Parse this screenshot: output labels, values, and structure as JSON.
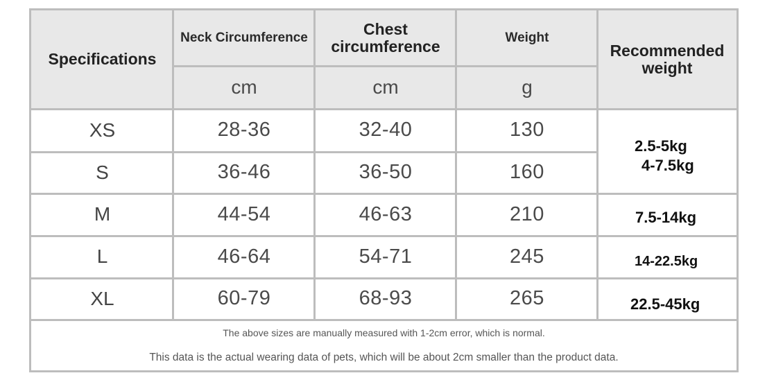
{
  "table": {
    "headers": {
      "specifications": "Specifications",
      "neck": "Neck Circumference",
      "chest_line1": "Chest",
      "chest_line2": "circumference",
      "weight": "Weight",
      "recommended_line1": "Recommended",
      "recommended_line2": "weight"
    },
    "units": {
      "neck": "cm",
      "chest": "cm",
      "weight": "g"
    },
    "rows": [
      {
        "size": "XS",
        "neck": "28-36",
        "chest": "32-40",
        "weight": "130"
      },
      {
        "size": "S",
        "neck": "36-46",
        "chest": "36-50",
        "weight": "160"
      },
      {
        "size": "M",
        "neck": "44-54",
        "chest": "46-63",
        "weight": "210"
      },
      {
        "size": "L",
        "neck": "46-64",
        "chest": "54-71",
        "weight": "245"
      },
      {
        "size": "XL",
        "neck": "60-79",
        "chest": "68-93",
        "weight": "265"
      }
    ],
    "recommended": [
      "2.5-5kg",
      "4-7.5kg",
      "7.5-14kg",
      "14-22.5kg",
      "22.5-45kg"
    ]
  },
  "notes": {
    "line1": "The above sizes are manually measured with 1-2cm error, which is normal.",
    "line2": "This data is the actual wearing data of pets, which will be about 2cm smaller than the product data."
  },
  "colors": {
    "grid": "#bdbdbd",
    "header_bg": "#e8e8e8"
  }
}
